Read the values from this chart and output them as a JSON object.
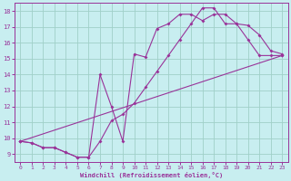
{
  "xlabel": "Windchill (Refroidissement éolien,°C)",
  "background_color": "#c8eef0",
  "grid_color": "#a0d0c8",
  "line_color": "#993399",
  "spine_color": "#993399",
  "xlim": [
    -0.5,
    23.5
  ],
  "ylim": [
    8.5,
    18.5
  ],
  "xticks": [
    0,
    1,
    2,
    3,
    4,
    5,
    6,
    7,
    8,
    9,
    10,
    11,
    12,
    13,
    14,
    15,
    16,
    17,
    18,
    19,
    20,
    21,
    22,
    23
  ],
  "yticks": [
    9,
    10,
    11,
    12,
    13,
    14,
    15,
    16,
    17,
    18
  ],
  "line1_x": [
    0,
    1,
    2,
    3,
    4,
    5,
    6,
    7,
    8,
    9,
    10,
    11,
    12,
    13,
    14,
    15,
    16,
    17,
    18,
    19,
    20,
    21,
    22,
    23
  ],
  "line1_y": [
    9.8,
    9.7,
    9.4,
    9.4,
    9.1,
    8.8,
    8.8,
    9.8,
    11.1,
    11.5,
    12.2,
    13.2,
    14.2,
    15.2,
    16.2,
    17.2,
    18.2,
    18.2,
    17.2,
    17.2,
    16.2,
    15.2,
    15.2,
    15.2
  ],
  "line2_x": [
    0,
    1,
    2,
    3,
    4,
    5,
    6,
    7,
    8,
    9,
    10,
    11,
    12,
    13,
    14,
    15,
    16,
    17,
    18,
    19,
    20,
    21,
    22,
    23
  ],
  "line2_y": [
    9.8,
    9.7,
    9.4,
    9.4,
    9.1,
    8.8,
    8.8,
    14.0,
    12.0,
    9.8,
    15.3,
    15.1,
    16.9,
    17.2,
    17.8,
    17.8,
    17.4,
    17.8,
    17.8,
    17.2,
    17.1,
    16.5,
    15.5,
    15.3
  ],
  "line3_x": [
    0,
    23
  ],
  "line3_y": [
    9.8,
    15.2
  ]
}
